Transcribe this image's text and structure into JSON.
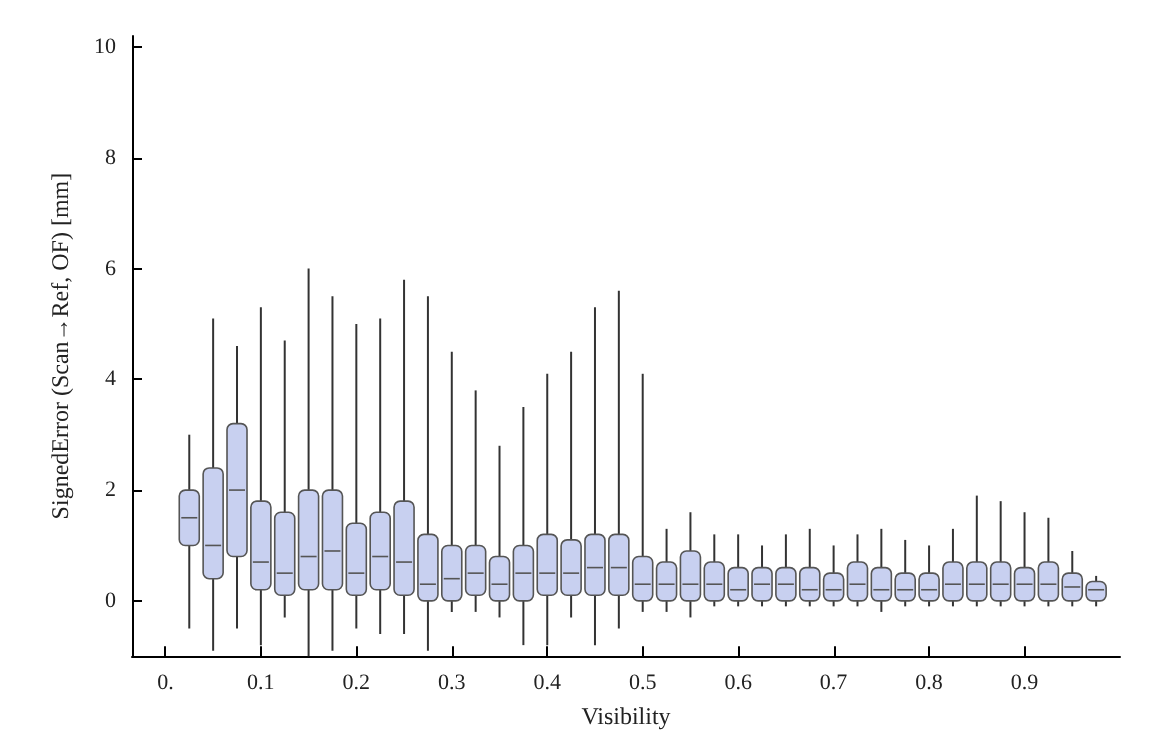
{
  "chart_data": {
    "type": "box",
    "xlabel": "Visibility",
    "ylabel": "SignedError (Scan→Ref, OF) [mm]",
    "x": [
      0.025,
      0.05,
      0.075,
      0.1,
      0.125,
      0.15,
      0.175,
      0.2,
      0.225,
      0.25,
      0.275,
      0.3,
      0.325,
      0.35,
      0.375,
      0.4,
      0.425,
      0.45,
      0.475,
      0.5,
      0.525,
      0.55,
      0.575,
      0.6,
      0.625,
      0.65,
      0.675,
      0.7,
      0.725,
      0.75,
      0.775,
      0.8,
      0.825,
      0.85,
      0.875,
      0.9,
      0.925,
      0.95,
      0.975
    ],
    "color": "#c8d0f0",
    "boxes": [
      {
        "low": -0.5,
        "q1": 1.0,
        "median": 1.5,
        "q3": 2.0,
        "high": 3.0
      },
      {
        "low": -0.9,
        "q1": 0.4,
        "median": 1.0,
        "q3": 2.4,
        "high": 5.1
      },
      {
        "low": -0.5,
        "q1": 0.8,
        "median": 2.0,
        "q3": 3.2,
        "high": 4.6
      },
      {
        "low": -0.8,
        "q1": 0.2,
        "median": 0.7,
        "q3": 1.8,
        "high": 5.3
      },
      {
        "low": -0.3,
        "q1": 0.1,
        "median": 0.5,
        "q3": 1.6,
        "high": 4.7
      },
      {
        "low": -1.0,
        "q1": 0.2,
        "median": 0.8,
        "q3": 2.0,
        "high": 6.0
      },
      {
        "low": -0.9,
        "q1": 0.2,
        "median": 0.9,
        "q3": 2.0,
        "high": 5.5
      },
      {
        "low": -0.5,
        "q1": 0.1,
        "median": 0.5,
        "q3": 1.4,
        "high": 5.0
      },
      {
        "low": -0.6,
        "q1": 0.2,
        "median": 0.8,
        "q3": 1.6,
        "high": 5.1
      },
      {
        "low": -0.6,
        "q1": 0.1,
        "median": 0.7,
        "q3": 1.8,
        "high": 5.8
      },
      {
        "low": -0.9,
        "q1": 0.0,
        "median": 0.3,
        "q3": 1.2,
        "high": 5.5
      },
      {
        "low": -0.2,
        "q1": 0.0,
        "median": 0.4,
        "q3": 1.0,
        "high": 4.5
      },
      {
        "low": -0.2,
        "q1": 0.1,
        "median": 0.5,
        "q3": 1.0,
        "high": 3.8
      },
      {
        "low": -0.3,
        "q1": 0.0,
        "median": 0.3,
        "q3": 0.8,
        "high": 2.8
      },
      {
        "low": -0.8,
        "q1": 0.0,
        "median": 0.5,
        "q3": 1.0,
        "high": 3.5
      },
      {
        "low": -0.8,
        "q1": 0.1,
        "median": 0.5,
        "q3": 1.2,
        "high": 4.1
      },
      {
        "low": -0.3,
        "q1": 0.1,
        "median": 0.5,
        "q3": 1.1,
        "high": 4.5
      },
      {
        "low": -0.8,
        "q1": 0.1,
        "median": 0.6,
        "q3": 1.2,
        "high": 5.3
      },
      {
        "low": -0.5,
        "q1": 0.1,
        "median": 0.6,
        "q3": 1.2,
        "high": 5.6
      },
      {
        "low": -0.2,
        "q1": 0.0,
        "median": 0.3,
        "q3": 0.8,
        "high": 4.1
      },
      {
        "low": -0.2,
        "q1": 0.0,
        "median": 0.3,
        "q3": 0.7,
        "high": 1.3
      },
      {
        "low": -0.3,
        "q1": 0.0,
        "median": 0.3,
        "q3": 0.9,
        "high": 1.6
      },
      {
        "low": -0.1,
        "q1": 0.0,
        "median": 0.3,
        "q3": 0.7,
        "high": 1.2
      },
      {
        "low": -0.1,
        "q1": 0.0,
        "median": 0.2,
        "q3": 0.6,
        "high": 1.2
      },
      {
        "low": -0.1,
        "q1": 0.0,
        "median": 0.3,
        "q3": 0.6,
        "high": 1.0
      },
      {
        "low": -0.1,
        "q1": 0.0,
        "median": 0.3,
        "q3": 0.6,
        "high": 1.2
      },
      {
        "low": -0.1,
        "q1": 0.0,
        "median": 0.2,
        "q3": 0.6,
        "high": 1.3
      },
      {
        "low": -0.1,
        "q1": 0.0,
        "median": 0.2,
        "q3": 0.5,
        "high": 1.0
      },
      {
        "low": -0.1,
        "q1": 0.0,
        "median": 0.3,
        "q3": 0.7,
        "high": 1.2
      },
      {
        "low": -0.2,
        "q1": 0.0,
        "median": 0.2,
        "q3": 0.6,
        "high": 1.3
      },
      {
        "low": -0.1,
        "q1": 0.0,
        "median": 0.2,
        "q3": 0.5,
        "high": 1.1
      },
      {
        "low": -0.1,
        "q1": 0.0,
        "median": 0.2,
        "q3": 0.5,
        "high": 1.0
      },
      {
        "low": -0.1,
        "q1": 0.0,
        "median": 0.3,
        "q3": 0.7,
        "high": 1.3
      },
      {
        "low": -0.1,
        "q1": 0.0,
        "median": 0.3,
        "q3": 0.7,
        "high": 1.9
      },
      {
        "low": -0.1,
        "q1": 0.0,
        "median": 0.3,
        "q3": 0.7,
        "high": 1.8
      },
      {
        "low": -0.1,
        "q1": 0.0,
        "median": 0.3,
        "q3": 0.6,
        "high": 1.6
      },
      {
        "low": -0.1,
        "q1": 0.0,
        "median": 0.3,
        "q3": 0.7,
        "high": 1.5
      },
      {
        "low": -0.1,
        "q1": 0.0,
        "median": 0.25,
        "q3": 0.5,
        "high": 0.9
      },
      {
        "low": -0.1,
        "q1": 0.0,
        "median": 0.2,
        "q3": 0.35,
        "high": 0.45
      }
    ],
    "xlim": [
      -0.035,
      1.0
    ],
    "xticks": [
      {
        "value": 0,
        "label": "0."
      },
      0.1,
      0.2,
      0.3,
      0.4,
      0.5,
      0.6,
      0.7,
      0.8,
      0.9
    ],
    "ylim": [
      -1.0,
      10.2
    ],
    "yticks": [
      0,
      2,
      4,
      6,
      8,
      10
    ],
    "grid": false
  }
}
